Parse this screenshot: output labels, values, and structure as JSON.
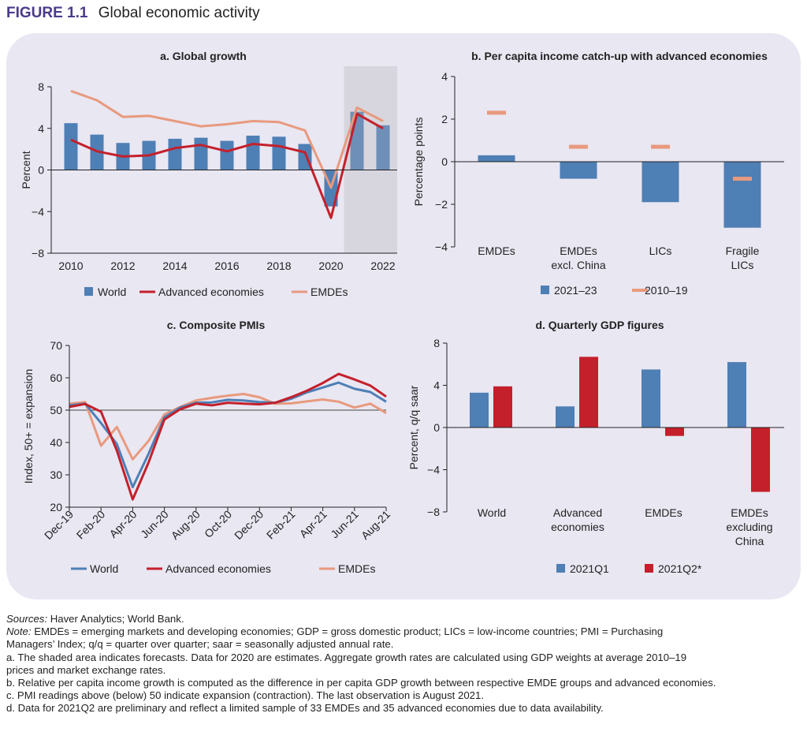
{
  "figure": {
    "label": "FIGURE 1.1",
    "title": "Global economic activity"
  },
  "colors": {
    "world": "#4e7fb5",
    "advanced": "#c4202b",
    "emdes": "#e89a7e",
    "shade": "#d7d6de",
    "panel_bg": "#e9e7f2",
    "title_label": "#4b3a8c"
  },
  "chart_data": [
    {
      "id": "a",
      "type": "bar+line",
      "title": "a. Global growth",
      "ylabel": "Percent",
      "ylim": [
        -8,
        8
      ],
      "yticks": [
        "8",
        "4",
        "0",
        "−4",
        "−8"
      ],
      "x": [
        2010,
        2011,
        2012,
        2013,
        2014,
        2015,
        2016,
        2017,
        2018,
        2019,
        2020,
        2021,
        2022
      ],
      "xtick_labels": [
        "2010",
        "2012",
        "2014",
        "2016",
        "2018",
        "2020",
        "2022"
      ],
      "shaded_from": 2021,
      "series": [
        {
          "name": "World",
          "kind": "bar",
          "values": [
            4.5,
            3.4,
            2.6,
            2.8,
            3.0,
            3.1,
            2.8,
            3.3,
            3.2,
            2.5,
            -3.5,
            5.6,
            4.3
          ]
        },
        {
          "name": "Advanced economies",
          "kind": "line",
          "values": [
            2.9,
            1.8,
            1.3,
            1.4,
            2.1,
            2.4,
            1.8,
            2.5,
            2.3,
            1.7,
            -4.6,
            5.4,
            4.0
          ]
        },
        {
          "name": "EMDEs",
          "kind": "line",
          "values": [
            7.6,
            6.7,
            5.1,
            5.2,
            4.7,
            4.2,
            4.4,
            4.7,
            4.6,
            3.8,
            -1.7,
            6.0,
            4.7
          ]
        }
      ],
      "legend": [
        "World",
        "Advanced economies",
        "EMDEs"
      ]
    },
    {
      "id": "b",
      "type": "bar+marker",
      "title": "b. Per capita income catch-up with advanced economies",
      "ylabel": "Percentage points",
      "ylim": [
        -4,
        4
      ],
      "yticks": [
        "4",
        "2",
        "0",
        "−2",
        "−4"
      ],
      "categories": [
        [
          "EMDEs"
        ],
        [
          "EMDEs",
          "excl. China"
        ],
        [
          "LICs"
        ],
        [
          "Fragile",
          "LICs"
        ]
      ],
      "series": [
        {
          "name": "2021–23",
          "kind": "bar",
          "values": [
            0.3,
            -0.8,
            -1.9,
            -3.1
          ]
        },
        {
          "name": "2010–19",
          "kind": "marker",
          "values": [
            2.3,
            0.7,
            0.7,
            -0.8
          ]
        }
      ],
      "legend": [
        "2021–23",
        "2010–19"
      ]
    },
    {
      "id": "c",
      "type": "line",
      "title": "c. Composite PMIs",
      "ylabel": "Index, 50+ = expansion",
      "ylim": [
        20,
        70
      ],
      "yticks": [
        "70",
        "60",
        "50",
        "40",
        "30",
        "20"
      ],
      "reference_line": 50,
      "x": [
        "Dec-19",
        "Jan-20",
        "Feb-20",
        "Mar-20",
        "Apr-20",
        "May-20",
        "Jun-20",
        "Jul-20",
        "Aug-20",
        "Sep-20",
        "Oct-20",
        "Nov-20",
        "Dec-20",
        "Jan-21",
        "Feb-21",
        "Mar-21",
        "Apr-21",
        "May-21",
        "Jun-21",
        "Jul-21",
        "Aug-21"
      ],
      "xtick_labels": [
        "Dec-19",
        "Feb-20",
        "Apr-20",
        "Jun-20",
        "Aug-20",
        "Oct-20",
        "Dec-20",
        "Feb-21",
        "Apr-21",
        "Jun-21",
        "Aug-21"
      ],
      "series": [
        {
          "name": "World",
          "values": [
            51.5,
            52.0,
            46.0,
            39.5,
            26.2,
            36.5,
            47.8,
            50.8,
            52.3,
            52.4,
            53.2,
            53.0,
            52.5,
            52.3,
            53.5,
            55.5,
            57.0,
            58.5,
            56.6,
            55.6,
            52.6
          ]
        },
        {
          "name": "Advanced economies",
          "values": [
            51.0,
            51.9,
            49.5,
            37.5,
            22.4,
            33.8,
            47.1,
            50.3,
            52.0,
            51.5,
            52.3,
            52.0,
            51.8,
            52.3,
            54.0,
            56.0,
            58.4,
            61.2,
            59.5,
            57.6,
            54.2
          ]
        },
        {
          "name": "EMDEs",
          "values": [
            52.0,
            52.5,
            39.0,
            44.8,
            34.8,
            40.5,
            48.7,
            51.0,
            53.0,
            53.8,
            54.5,
            55.0,
            54.0,
            52.0,
            52.1,
            52.7,
            53.3,
            52.6,
            50.8,
            52.0,
            49.1
          ]
        }
      ],
      "legend": [
        "World",
        "Advanced economies",
        "EMDEs"
      ]
    },
    {
      "id": "d",
      "type": "bar",
      "title": "d. Quarterly GDP figures",
      "ylabel": "Percent, q/q saar",
      "ylim": [
        -8,
        8
      ],
      "yticks": [
        "8",
        "4",
        "0",
        "−4",
        "−8"
      ],
      "categories": [
        [
          "World"
        ],
        [
          "Advanced",
          "economies"
        ],
        [
          "EMDEs"
        ],
        [
          "EMDEs",
          "excluding",
          "China"
        ]
      ],
      "series": [
        {
          "name": "2021Q1",
          "values": [
            3.3,
            2.0,
            5.5,
            6.2
          ]
        },
        {
          "name": "2021Q2*",
          "values": [
            3.9,
            6.7,
            -0.8,
            -6.1
          ]
        }
      ],
      "legend": [
        "2021Q1",
        "2021Q2*"
      ]
    }
  ],
  "notes": {
    "sources_label": "Sources:",
    "sources_text": "Haver Analytics; World Bank.",
    "note_label": "Note:",
    "note_text": "EMDEs = emerging markets and developing economies; GDP = gross domestic product; LICs = low-income countries; PMI = Purchasing",
    "note_text_2": "Managers’ Index; q/q = quarter over quarter; saar = seasonally adjusted annual rate.",
    "a_1": "a. The shaded area indicates forecasts. Data for 2020 are estimates. Aggregate growth rates are calculated using GDP weights at average 2010–19",
    "a_2": "prices and market exchange rates.",
    "b": "b. Relative per capita income growth is computed as the difference in per capita GDP growth between respective EMDE groups and advanced economies.",
    "c": "c. PMI readings above (below) 50 indicate expansion (contraction). The last observation is August 2021.",
    "d": "d. Data for 2021Q2 are preliminary and reflect a limited sample of 33 EMDEs and 35 advanced economies due to data availability."
  }
}
